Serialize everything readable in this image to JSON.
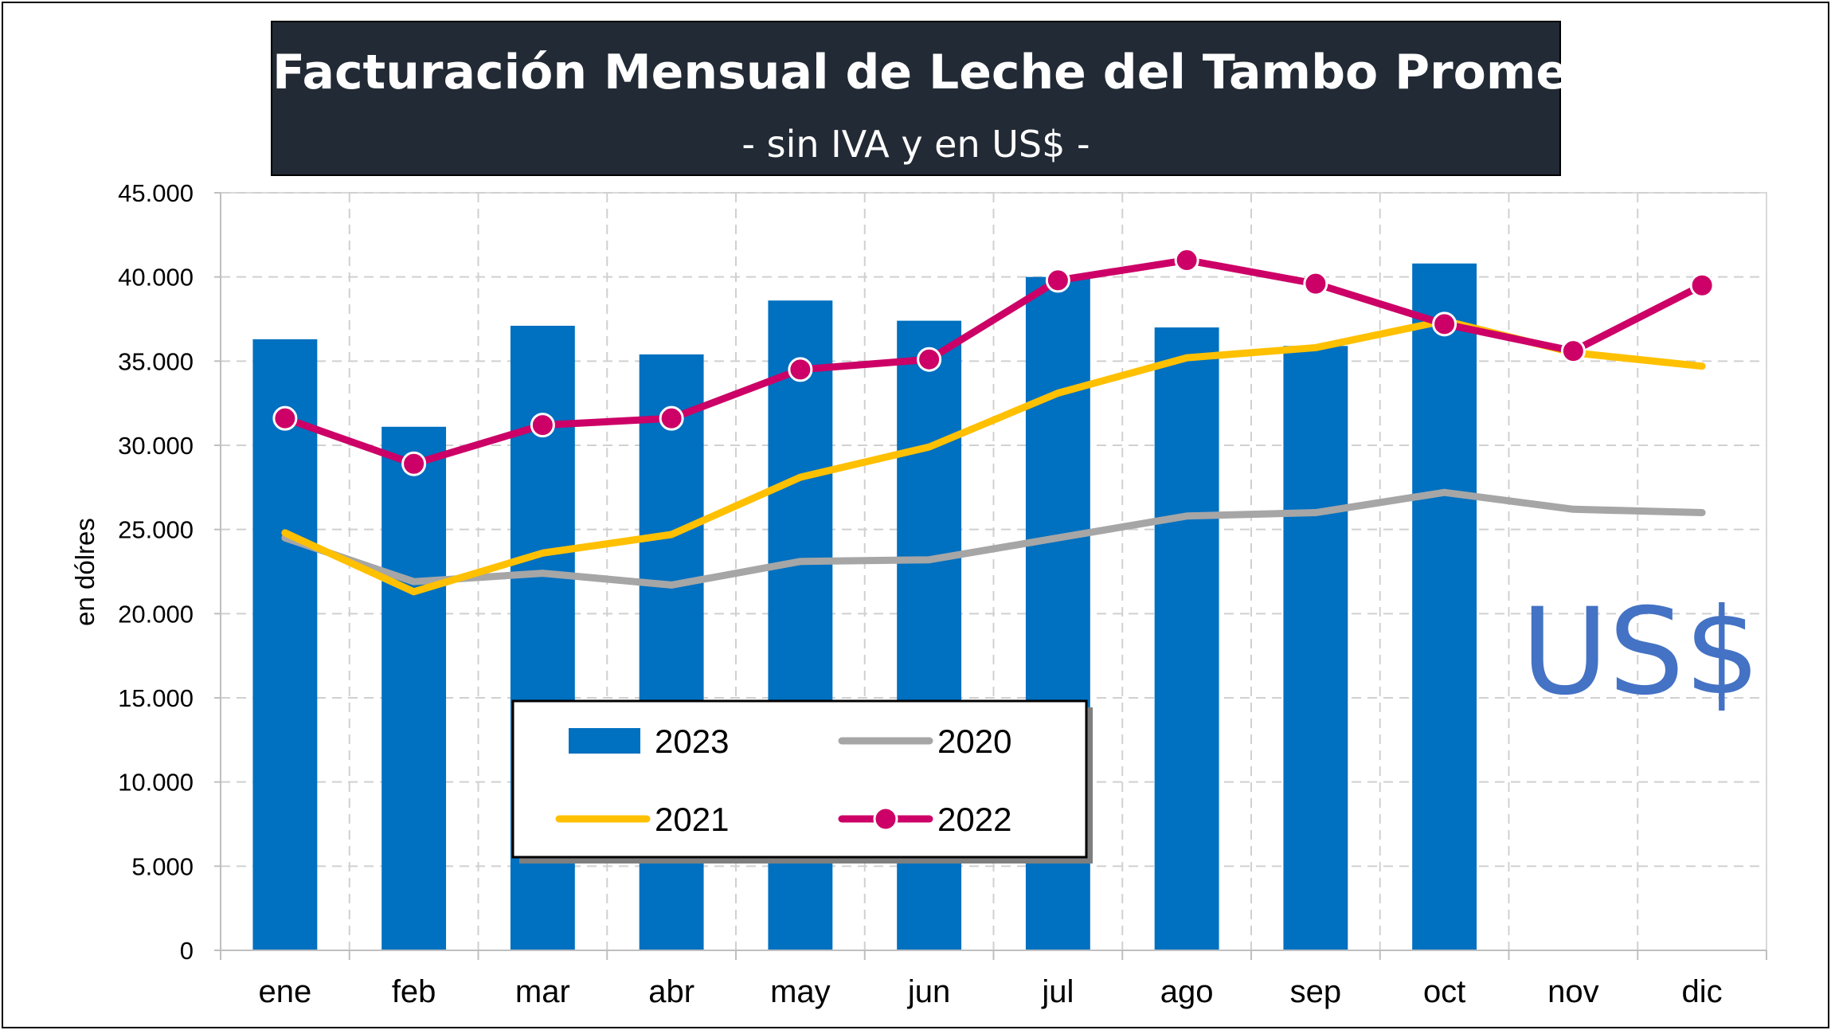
{
  "header": {
    "title": "Facturación Mensual de Leche del Tambo Promedio",
    "subtitle": "- sin IVA y en US$ -"
  },
  "watermark": "US$",
  "chart_data": {
    "type": "bar",
    "title": "Facturación Mensual de Leche del Tambo Promedio",
    "subtitle": "- sin IVA y en US$ -",
    "xlabel": "",
    "ylabel": "en dólres",
    "ylim": [
      0,
      45000
    ],
    "ytick_step": 5000,
    "ytick_labels": [
      "0",
      "5.000",
      "10.000",
      "15.000",
      "20.000",
      "25.000",
      "30.000",
      "35.000",
      "40.000",
      "45.000"
    ],
    "grid": true,
    "legend_position": "bottom-left inside plot",
    "categories": [
      "ene",
      "feb",
      "mar",
      "abr",
      "may",
      "jun",
      "jul",
      "ago",
      "sep",
      "oct",
      "nov",
      "dic"
    ],
    "series": [
      {
        "name": "2023",
        "type": "bar",
        "color": "#0070c0",
        "values": [
          36300,
          31100,
          37100,
          35400,
          38600,
          37400,
          40000,
          37000,
          35900,
          40800,
          null,
          null
        ]
      },
      {
        "name": "2020",
        "type": "line",
        "color": "#a6a6a6",
        "values": [
          24500,
          21900,
          22400,
          21700,
          23100,
          23200,
          24500,
          25800,
          26000,
          27200,
          26200,
          26000
        ]
      },
      {
        "name": "2021",
        "type": "line",
        "color": "#ffc000",
        "values": [
          24800,
          21300,
          23600,
          24700,
          28100,
          29900,
          33100,
          35200,
          35800,
          37400,
          35500,
          34700
        ]
      },
      {
        "name": "2022",
        "type": "line",
        "color": "#cc0066",
        "markers": true,
        "values": [
          31600,
          28900,
          31200,
          31600,
          34500,
          35100,
          39800,
          41000,
          39600,
          37200,
          35600,
          39500
        ]
      }
    ]
  }
}
